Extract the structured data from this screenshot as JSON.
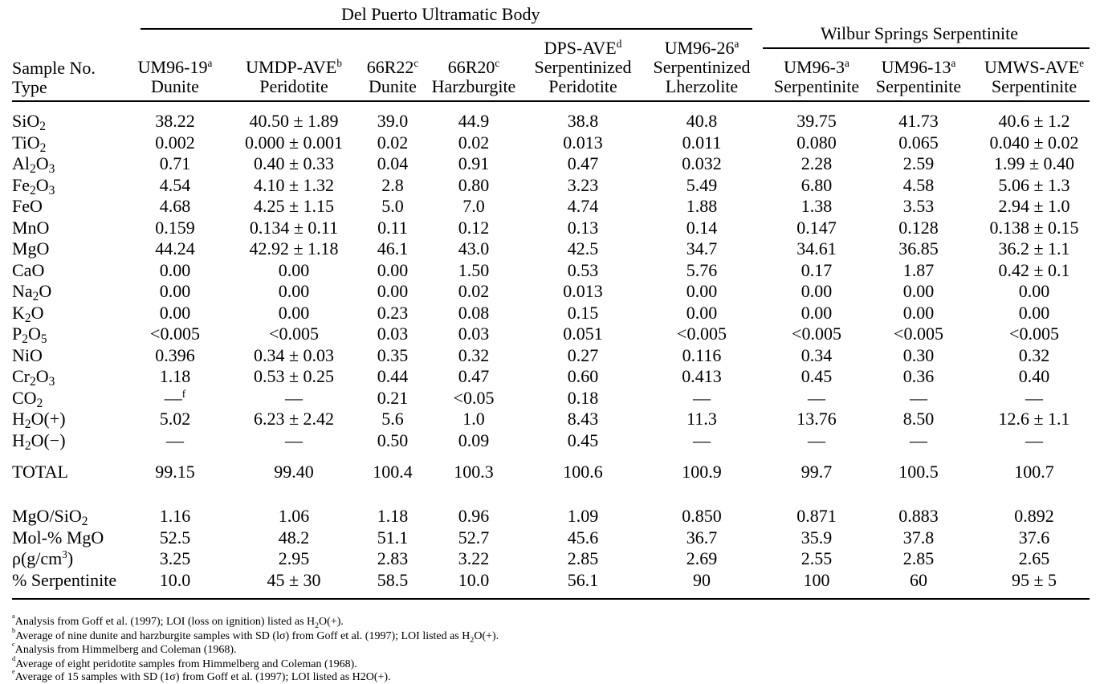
{
  "groups": {
    "del_puerto": "Del Puerto Ultramatic Body",
    "wilbur": "Wilbur Springs Serpentinite"
  },
  "row_headers": {
    "sample": "Sample No.",
    "type": "Type"
  },
  "columns": [
    {
      "name": "UM96-19",
      "mark": "a",
      "type": "Dunite"
    },
    {
      "name": "UMDP-AVE",
      "mark": "b",
      "type": "Peridotite"
    },
    {
      "name": "66R22",
      "mark": "c",
      "type": "Dunite"
    },
    {
      "name": "66R20",
      "mark": "c",
      "type": "Harzburgite"
    },
    {
      "name": "DPS-AVE",
      "mark": "d",
      "type_line1": "Serpentinized",
      "type": "Peridotite"
    },
    {
      "name": "UM96-26",
      "mark": "a",
      "type_line1": "Serpentinized",
      "type": "Lherzolite"
    },
    {
      "name": "UM96-3",
      "mark": "a",
      "type": "Serpentinite"
    },
    {
      "name": "UM96-13",
      "mark": "a",
      "type": "Serpentinite"
    },
    {
      "name": "UMWS-AVE",
      "mark": "e",
      "type": "Serpentinite"
    }
  ],
  "rows": [
    {
      "base": "SiO",
      "sub": "2",
      "values": [
        "38.22",
        "40.50 ± 1.89",
        "39.0",
        "44.9",
        "38.8",
        "40.8",
        "39.75",
        "41.73",
        "40.6 ± 1.2"
      ]
    },
    {
      "base": "TiO",
      "sub": "2",
      "values": [
        "0.002",
        "0.000 ± 0.001",
        "0.02",
        "0.02",
        "0.013",
        "0.011",
        "0.080",
        "0.065",
        "0.040 ± 0.02"
      ]
    },
    {
      "base": "Al",
      "sub": "2",
      "base2": "O",
      "sub2": "3",
      "values": [
        "0.71",
        "0.40 ± 0.33",
        "0.04",
        "0.91",
        "0.47",
        "0.032",
        "2.28",
        "2.59",
        "1.99 ± 0.40"
      ]
    },
    {
      "base": "Fe",
      "sub": "2",
      "base2": "O",
      "sub2": "3",
      "values": [
        "4.54",
        "4.10 ± 1.32",
        "2.8",
        "0.80",
        "3.23",
        "5.49",
        "6.80",
        "4.58",
        "5.06 ± 1.3"
      ]
    },
    {
      "base": "FeO",
      "values": [
        "4.68",
        "4.25 ± 1.15",
        "5.0",
        "7.0",
        "4.74",
        "1.88",
        "1.38",
        "3.53",
        "2.94 ± 1.0"
      ]
    },
    {
      "base": "MnO",
      "values": [
        "0.159",
        "0.134 ± 0.11",
        "0.11",
        "0.12",
        "0.13",
        "0.14",
        "0.147",
        "0.128",
        "0.138 ± 0.15"
      ]
    },
    {
      "base": "MgO",
      "values": [
        "44.24",
        "42.92 ± 1.18",
        "46.1",
        "43.0",
        "42.5",
        "34.7",
        "34.61",
        "36.85",
        "36.2 ± 1.1"
      ]
    },
    {
      "base": "CaO",
      "values": [
        "0.00",
        "0.00",
        "0.00",
        "1.50",
        "0.53",
        "5.76",
        "0.17",
        "1.87",
        "0.42 ± 0.1"
      ]
    },
    {
      "base": "Na",
      "sub": "2",
      "base2": "O",
      "values": [
        "0.00",
        "0.00",
        "0.00",
        "0.02",
        "0.013",
        "0.00",
        "0.00",
        "0.00",
        "0.00"
      ]
    },
    {
      "base": "K",
      "sub": "2",
      "base2": "O",
      "values": [
        "0.00",
        "0.00",
        "0.23",
        "0.08",
        "0.15",
        "0.00",
        "0.00",
        "0.00",
        "0.00"
      ]
    },
    {
      "base": "P",
      "sub": "2",
      "base2": "O",
      "sub2": "5",
      "values": [
        "<0.005",
        "<0.005",
        "0.03",
        "0.03",
        "0.051",
        "<0.005",
        "<0.005",
        "<0.005",
        "<0.005"
      ]
    },
    {
      "base": "NiO",
      "values": [
        "0.396",
        "0.34 ± 0.03",
        "0.35",
        "0.32",
        "0.27",
        "0.116",
        "0.34",
        "0.30",
        "0.32"
      ]
    },
    {
      "base": "Cr",
      "sub": "2",
      "base2": "O",
      "sub2": "3",
      "values": [
        "1.18",
        "0.53 ± 0.25",
        "0.44",
        "0.47",
        "0.60",
        "0.413",
        "0.45",
        "0.36",
        "0.40"
      ]
    },
    {
      "base": "CO",
      "sub": "2",
      "values": [
        "—",
        "—",
        "0.21",
        "<0.05",
        "0.18",
        "—",
        "—",
        "—",
        "—"
      ],
      "value_marks": [
        "f",
        "",
        "",
        "",
        "",
        "",
        "",
        "",
        ""
      ]
    },
    {
      "base": "H",
      "sub": "2",
      "base2": "O(+)",
      "values": [
        "5.02",
        "6.23 ± 2.42",
        "5.6",
        "1.0",
        "8.43",
        "11.3",
        "13.76",
        "8.50",
        "12.6 ± 1.1"
      ]
    },
    {
      "base": "H",
      "sub": "2",
      "base2": "O(−)",
      "values": [
        "—",
        "—",
        "0.50",
        "0.09",
        "0.45",
        "—",
        "—",
        "—",
        "—"
      ]
    }
  ],
  "total": {
    "label": "TOTAL",
    "values": [
      "99.15",
      "99.40",
      "100.4",
      "100.3",
      "100.6",
      "100.9",
      "99.7",
      "100.5",
      "100.7"
    ]
  },
  "derived": [
    {
      "base": "MgO/SiO",
      "sub": "2",
      "values": [
        "1.16",
        "1.06",
        "1.18",
        "0.96",
        "1.09",
        "0.850",
        "0.871",
        "0.883",
        "0.892"
      ]
    },
    {
      "base": "Mol-% MgO",
      "values": [
        "52.5",
        "48.2",
        "51.1",
        "52.7",
        "45.6",
        "36.7",
        "35.9",
        "37.8",
        "37.6"
      ]
    },
    {
      "base": "ρ(g/cm",
      "sup": "3",
      "base2": ")",
      "values": [
        "3.25",
        "2.95",
        "2.83",
        "3.22",
        "2.85",
        "2.69",
        "2.55",
        "2.85",
        "2.65"
      ]
    },
    {
      "base": "% Serpentinite",
      "values": [
        "10.0",
        "45 ± 30",
        "58.5",
        "10.0",
        "56.1",
        "90",
        "100",
        "60",
        "95 ± 5"
      ]
    }
  ],
  "footnotes": [
    {
      "mark": "a",
      "pre": "Analysis from Goff et al. (1997); LOI (loss on ignition) listed as H",
      "sub": "2",
      "post": "O(+)."
    },
    {
      "mark": "b",
      "pre": "Average of nine dunite and harzburgite samples with SD (lσ) from Goff et al. (1997); LOI listed as H",
      "sub": "2",
      "post": "O(+)."
    },
    {
      "mark": "c",
      "pre": "Analysis from Himmelberg and Coleman (1968)."
    },
    {
      "mark": "d",
      "pre": "Average of eight peridotite samples from Himmelberg and Coleman (1968)."
    },
    {
      "mark": "e",
      "pre": "Average of 15 samples with SD (1σ) from Goff et al. (1997); LOI listed as H2O(+)."
    }
  ]
}
